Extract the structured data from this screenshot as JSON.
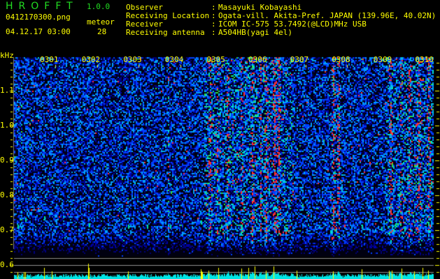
{
  "header": {
    "app_name": "HROFFT",
    "version": "1.0.0",
    "filename": "0412170300.png",
    "datetime": "04.12.17 03:00",
    "meteor_label": "meteor",
    "meteor_count": "28"
  },
  "info": [
    {
      "label": "Observer",
      "value": "Masayuki Kobayashi"
    },
    {
      "label": "Receiving Location",
      "value": "Ogata-vill. Akita-Pref. JAPAN (139.96E, 40.02N)"
    },
    {
      "label": "Receiver",
      "value": "ICOM IC-575 53.7492(@LCD)MHz USB"
    },
    {
      "label": "Receiving antenna",
      "value": "A504HB(yagi 4el)"
    }
  ],
  "spectrogram": {
    "y_unit": "kHz",
    "y_ticks": [
      "1.1",
      "1.0",
      "0.9",
      "0.8",
      "0.7",
      "0.6"
    ],
    "time_labels": [
      "0301",
      "0302",
      "0303",
      "0304",
      "0305",
      "0306",
      "0307",
      "0308",
      "0309",
      "0310"
    ],
    "colors": {
      "text": "#ffff00",
      "title": "#22dd22",
      "counts": "#00e5e5",
      "meteor_marks": "#ffff00",
      "background": "#000000"
    }
  }
}
